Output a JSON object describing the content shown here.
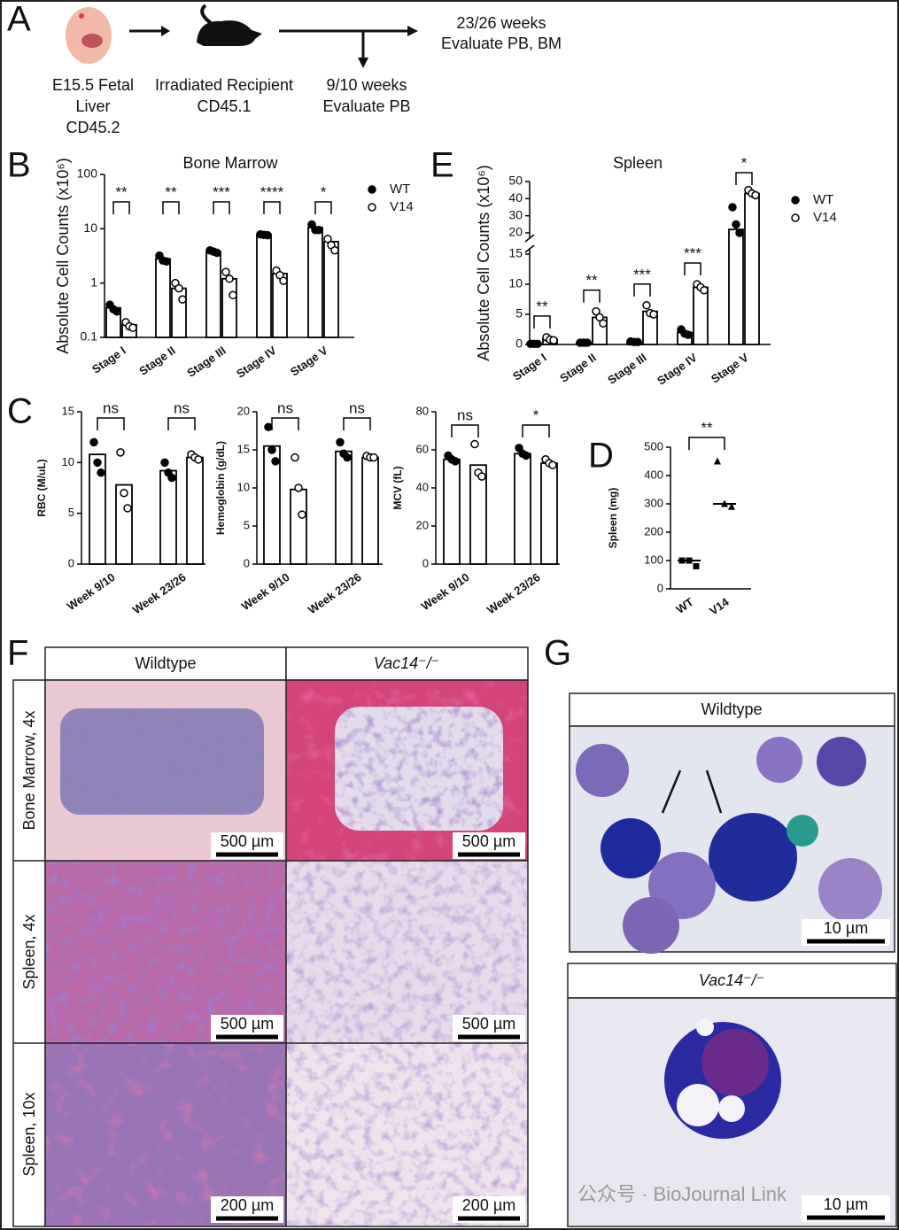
{
  "panel_labels": [
    "A",
    "B",
    "C",
    "D",
    "E",
    "F",
    "G"
  ],
  "schematic": {
    "donor": [
      "E15.5 Fetal",
      "Liver",
      "CD45.2"
    ],
    "recipient": [
      "Irradiated Recipient",
      "CD45.1"
    ],
    "early": [
      "9/10 weeks",
      "Evaluate PB"
    ],
    "late": [
      "23/26 weeks",
      "Evaluate PB, BM"
    ]
  },
  "chart_data": [
    {
      "type": "bar",
      "title": "Bone Marrow",
      "ylabel": "Absolute Cell Counts (x10⁶)",
      "log": true,
      "legend": true,
      "categories": [
        "Stage I",
        "Stage II",
        "Stage III",
        "Stage IV",
        "Stage V"
      ],
      "series": [
        {
          "name": "WT",
          "color": "#000000",
          "marker": "filled",
          "values": [
            0.35,
            2.8,
            3.8,
            7.8,
            10.5
          ],
          "points": [
            [
              0.4,
              0.33,
              0.3
            ],
            [
              3.2,
              2.6,
              2.5
            ],
            [
              4.0,
              3.8,
              3.6
            ],
            [
              7.9,
              7.7,
              7.6
            ],
            [
              12,
              9.5,
              9.5
            ]
          ]
        },
        {
          "name": "V14",
          "color": "#000000",
          "marker": "open",
          "values": [
            0.17,
            0.8,
            1.2,
            1.5,
            5.8
          ],
          "points": [
            [
              0.19,
              0.16,
              0.15
            ],
            [
              1.0,
              0.8,
              0.5
            ],
            [
              1.6,
              1.2,
              0.6
            ],
            [
              1.7,
              1.4,
              1.1
            ],
            [
              6.5,
              5,
              4
            ]
          ]
        }
      ],
      "ylim": [
        0.1,
        100
      ],
      "yticks": [
        0.1,
        1,
        10,
        100
      ],
      "significance": [
        "**",
        "**",
        "***",
        "****",
        "*"
      ]
    },
    {
      "type": "bar",
      "ylabel": "RBC (M/uL)",
      "legend": false,
      "categories": [
        "Week 9/10",
        "Week 23/26"
      ],
      "series": [
        {
          "color": "#000000",
          "marker": "filled",
          "values": [
            10.8,
            9.2
          ],
          "points": [
            [
              12,
              10,
              9
            ],
            [
              10,
              9,
              8.5
            ]
          ]
        },
        {
          "color": "#000000",
          "marker": "open",
          "values": [
            7.8,
            10.5
          ],
          "points": [
            [
              11,
              7,
              5.5
            ],
            [
              10.8,
              10.5,
              10.3
            ]
          ]
        }
      ],
      "ylim": [
        0,
        15
      ],
      "yticks": [
        0,
        5,
        10,
        15
      ],
      "significance": [
        "ns",
        "ns"
      ]
    },
    {
      "type": "bar",
      "ylabel": "Hemoglobin (g/dL)",
      "legend": false,
      "categories": [
        "Week 9/10",
        "Week 23/26"
      ],
      "series": [
        {
          "color": "#000000",
          "marker": "filled",
          "values": [
            15.5,
            14.8
          ],
          "points": [
            [
              18,
              15,
              13.5
            ],
            [
              16,
              14.5,
              14
            ]
          ]
        },
        {
          "color": "#000000",
          "marker": "open",
          "values": [
            9.8,
            14.0
          ],
          "points": [
            [
              14,
              10,
              6.5
            ],
            [
              14.2,
              14,
              14
            ]
          ]
        }
      ],
      "ylim": [
        0,
        20
      ],
      "yticks": [
        0,
        5,
        10,
        15,
        20
      ],
      "significance": [
        "ns",
        "ns"
      ]
    },
    {
      "type": "bar",
      "ylabel": "MCV (fL)",
      "legend": false,
      "categories": [
        "Week 9/10",
        "Week 23/26"
      ],
      "series": [
        {
          "color": "#000000",
          "marker": "filled",
          "values": [
            55,
            58
          ],
          "points": [
            [
              57,
              55,
              54
            ],
            [
              61,
              58,
              57
            ]
          ]
        },
        {
          "color": "#000000",
          "marker": "open",
          "values": [
            52,
            53
          ],
          "points": [
            [
              63,
              48,
              46
            ],
            [
              55,
              53,
              52
            ]
          ]
        }
      ],
      "ylim": [
        0,
        80
      ],
      "yticks": [
        0,
        20,
        40,
        60,
        80
      ],
      "significance": [
        "ns",
        "*"
      ]
    },
    {
      "type": "dot",
      "ylabel": "Spleen (mg)",
      "categories": [
        "WT",
        "V14"
      ],
      "color": "#000000",
      "markers": [
        "square",
        "triangle"
      ],
      "values": [
        [
          100,
          100,
          80
        ],
        [
          450,
          300,
          290
        ]
      ],
      "medians": [
        100,
        300
      ],
      "ylim": [
        0,
        500
      ],
      "yticks": [
        0,
        100,
        200,
        300,
        400,
        500
      ],
      "significance": [
        "**"
      ]
    },
    {
      "type": "bar",
      "title": "Spleen",
      "ylabel": "Absolute Cell Counts (x10⁶)",
      "legend": true,
      "ybreak": [
        15,
        20
      ],
      "categories": [
        "Stage I",
        "Stage II",
        "Stage III",
        "Stage IV",
        "Stage V"
      ],
      "series": [
        {
          "name": "WT",
          "color": "#000000",
          "marker": "filled",
          "values": [
            0.1,
            0.3,
            0.4,
            2.0,
            22
          ],
          "points": [
            [
              0.1,
              0.1,
              0.1
            ],
            [
              0.3,
              0.3,
              0.3
            ],
            [
              0.5,
              0.4,
              0.4
            ],
            [
              2.5,
              1.8,
              1.6
            ],
            [
              35,
              25,
              20
            ]
          ]
        },
        {
          "name": "V14",
          "color": "#000000",
          "marker": "open",
          "values": [
            0.9,
            4.5,
            5.5,
            9.5,
            43
          ],
          "points": [
            [
              1.2,
              0.8,
              0.7
            ],
            [
              5.5,
              4.5,
              3.5
            ],
            [
              6.5,
              5.2,
              5.0
            ],
            [
              10,
              9.5,
              9.0
            ],
            [
              45,
              43,
              42
            ]
          ]
        }
      ],
      "ylim": [
        0,
        50
      ],
      "yticks": [
        0,
        5,
        10,
        15,
        20,
        30,
        40,
        50
      ],
      "significance": [
        "**",
        "**",
        "***",
        "***",
        "*"
      ]
    }
  ],
  "histology": {
    "columns": [
      "Wildtype",
      "Vac14⁻/⁻"
    ],
    "rows": [
      "Bone Marrow, 4x",
      "Spleen, 4x",
      "Spleen, 10x"
    ],
    "scale_bars": [
      [
        "500 µm",
        "500 µm"
      ],
      [
        "500 µm",
        "500 µm"
      ],
      [
        "200 µm",
        "200 µm"
      ]
    ]
  },
  "smear": {
    "panels": [
      {
        "title": "Wildtype",
        "scale_bar": "10 µm"
      },
      {
        "title": "Vac14⁻/⁻",
        "scale_bar": "10 µm"
      }
    ]
  },
  "watermark": "公众号 · BioJournal Link"
}
